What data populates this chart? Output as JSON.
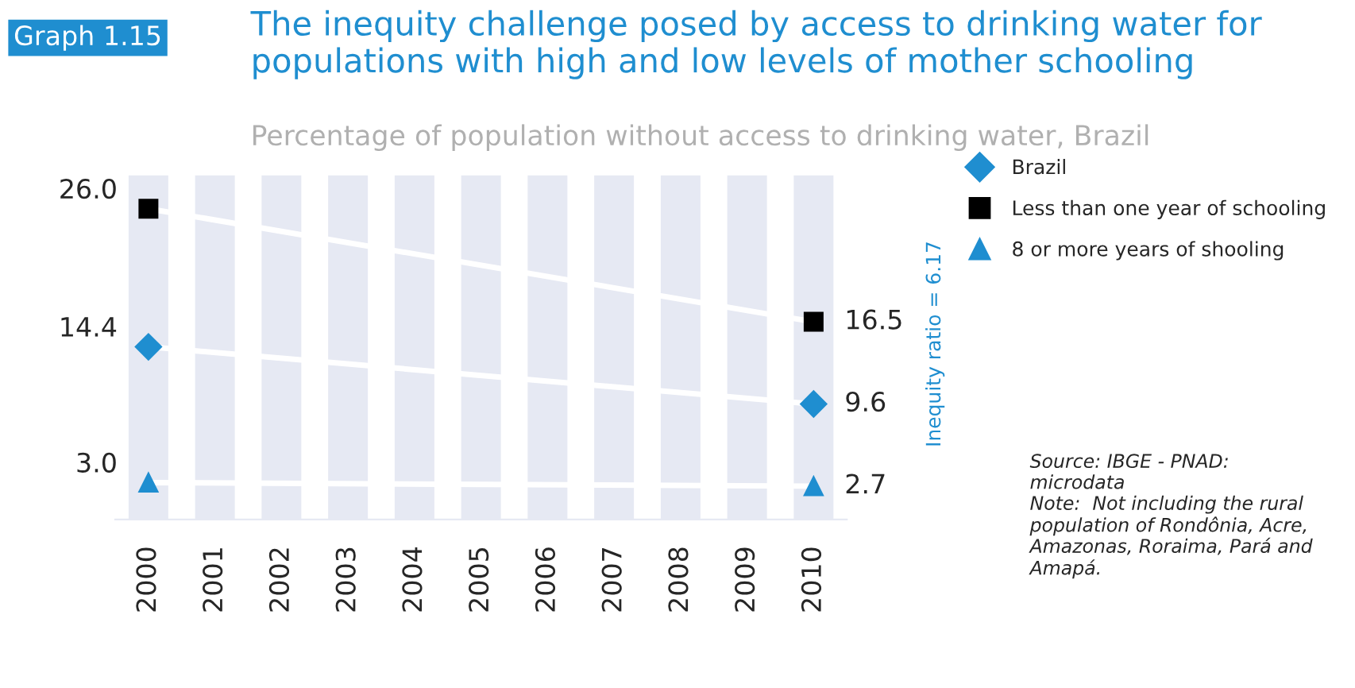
{
  "chart_data": {
    "type": "line",
    "title": "The inequity challenge posed by access to drinking water for populations with high and low levels of mother schooling",
    "subtitle": "Percentage of population without access to drinking water, Brazil",
    "x": [
      2000,
      2010
    ],
    "xlim": [
      1999.5,
      2010.5
    ],
    "xticks": [
      2000,
      2001,
      2002,
      2003,
      2004,
      2005,
      2006,
      2007,
      2008,
      2009,
      2010
    ],
    "series": [
      {
        "name": "Brazil",
        "color": "#1f8ed0",
        "marker": "diamond",
        "values": [
          14.4,
          9.6
        ],
        "value_labels": [
          "14.4",
          "9.6"
        ]
      },
      {
        "name": "Less than one year of schooling",
        "color": "#000000",
        "marker": "square",
        "values": [
          26.0,
          16.5
        ],
        "value_labels": [
          "26.0",
          "16.5"
        ]
      },
      {
        "name": "8 or more years of shooling",
        "color": "#1f8ed0",
        "marker": "triangle",
        "values": [
          3.0,
          2.7
        ],
        "value_labels": [
          "3.0",
          "2.7"
        ]
      }
    ],
    "grid": "x",
    "legend": "right",
    "tick_labels": "x",
    "annotations": [
      "Graph 1.15",
      "Inequity ratio = 6.17",
      "Source: IBGE - PNAD: microdata\nNote:  Not including the rural population of Rondônia, Acre, Amazonas, Roraima, Pará and Amapá."
    ]
  }
}
